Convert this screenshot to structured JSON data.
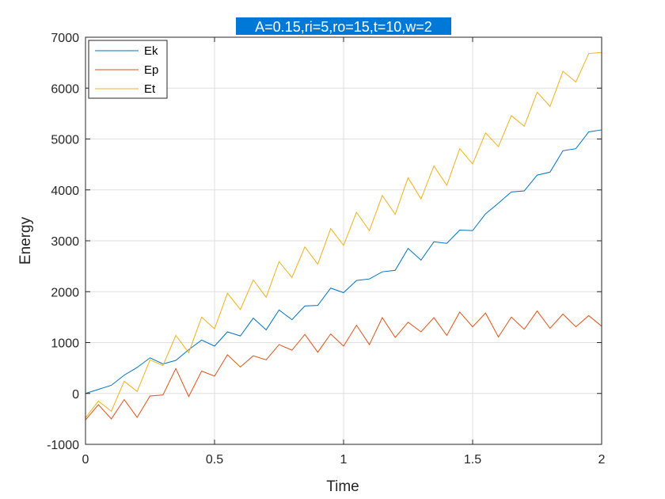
{
  "chart_data": {
    "type": "line",
    "title": "A=0.15,ri=5,ro=15,t=10,w=2",
    "xlabel": "Time",
    "ylabel": "Energy",
    "xlim": [
      0,
      2
    ],
    "ylim": [
      -1000,
      7000
    ],
    "xticks": [
      0,
      0.5,
      1,
      1.5,
      2
    ],
    "xtick_labels": [
      "0",
      "0.5",
      "1",
      "1.5",
      "2"
    ],
    "yticks": [
      -1000,
      0,
      1000,
      2000,
      3000,
      4000,
      5000,
      6000,
      7000
    ],
    "ytick_labels": [
      "-1000",
      "0",
      "1000",
      "2000",
      "3000",
      "4000",
      "5000",
      "6000",
      "7000"
    ],
    "grid": true,
    "legend_position": "top-left",
    "title_background": "#0078d7",
    "x": [
      0,
      0.05,
      0.1,
      0.15,
      0.2,
      0.25,
      0.3,
      0.35,
      0.4,
      0.45,
      0.5,
      0.55,
      0.6,
      0.65,
      0.7,
      0.75,
      0.8,
      0.85,
      0.9,
      0.95,
      1.0,
      1.05,
      1.1,
      1.15,
      1.2,
      1.25,
      1.3,
      1.35,
      1.4,
      1.45,
      1.5,
      1.55,
      1.6,
      1.65,
      1.7,
      1.75,
      1.8,
      1.85,
      1.9,
      1.95,
      2.0
    ],
    "series": [
      {
        "name": "Ek",
        "color": "#0072bd",
        "values": [
          0,
          80,
          160,
          360,
          510,
          700,
          580,
          650,
          860,
          1050,
          930,
          1210,
          1130,
          1480,
          1250,
          1640,
          1450,
          1720,
          1730,
          2070,
          1980,
          2220,
          2250,
          2390,
          2420,
          2850,
          2620,
          2980,
          2950,
          3210,
          3200,
          3530,
          3740,
          3960,
          3980,
          4290,
          4350,
          4770,
          4810,
          5140,
          5180
        ]
      },
      {
        "name": "Ep",
        "color": "#d95319",
        "values": [
          -520,
          -220,
          -500,
          -120,
          -470,
          -50,
          -30,
          490,
          -60,
          440,
          340,
          760,
          520,
          740,
          660,
          960,
          850,
          1160,
          810,
          1170,
          930,
          1340,
          960,
          1490,
          1100,
          1400,
          1210,
          1490,
          1140,
          1600,
          1310,
          1580,
          1110,
          1500,
          1260,
          1620,
          1280,
          1560,
          1310,
          1530,
          1320
        ]
      },
      {
        "name": "Et",
        "color": "#edb120",
        "values": [
          -480,
          -150,
          -350,
          240,
          40,
          660,
          550,
          1140,
          800,
          1500,
          1270,
          1970,
          1650,
          2230,
          1890,
          2590,
          2280,
          2880,
          2540,
          3240,
          2910,
          3560,
          3200,
          3890,
          3520,
          4240,
          3820,
          4470,
          4090,
          4810,
          4510,
          5120,
          4850,
          5460,
          5250,
          5920,
          5640,
          6330,
          6120,
          6680,
          6700
        ]
      }
    ]
  }
}
